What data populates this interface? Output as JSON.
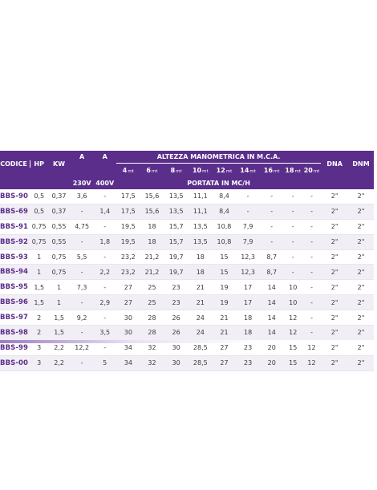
{
  "header": {
    "codice": "CODICE",
    "hp": "HP",
    "kw": "KW",
    "a1": "A",
    "a2": "A",
    "altezza": "ALTEZZA MANOMETRICA IN M.C.A.",
    "dna": "DNA",
    "dnm": "DNM",
    "v230": "230V",
    "v400": "400V",
    "portata": "PORTATA IN MC/H",
    "unit": "mt",
    "heights": [
      "4",
      "6",
      "8",
      "10",
      "12",
      "14",
      "16",
      "18",
      "20"
    ]
  },
  "rows": [
    [
      "BBS-90",
      "0,5",
      "0,37",
      "3,6",
      "-",
      "17,5",
      "15,6",
      "13,5",
      "11,1",
      "8,4",
      "-",
      "-",
      "-",
      "-",
      "2\"",
      "2\""
    ],
    [
      "BBS-69",
      "0,5",
      "0,37",
      "-",
      "1,4",
      "17,5",
      "15,6",
      "13,5",
      "11,1",
      "8,4",
      "-",
      "-",
      "-",
      "-",
      "2\"",
      "2\""
    ],
    [
      "BBS-91",
      "0,75",
      "0,55",
      "4,75",
      "-",
      "19,5",
      "18",
      "15,7",
      "13,5",
      "10,8",
      "7,9",
      "-",
      "-",
      "-",
      "2\"",
      "2\""
    ],
    [
      "BBS-92",
      "0,75",
      "0,55",
      "-",
      "1,8",
      "19,5",
      "18",
      "15,7",
      "13,5",
      "10,8",
      "7,9",
      "-",
      "-",
      "-",
      "2\"",
      "2\""
    ],
    [
      "BBS-93",
      "1",
      "0,75",
      "5,5",
      "-",
      "23,2",
      "21,2",
      "19,7",
      "18",
      "15",
      "12,3",
      "8,7",
      "-",
      "-",
      "2\"",
      "2\""
    ],
    [
      "BBS-94",
      "1",
      "0,75",
      "-",
      "2,2",
      "23,2",
      "21,2",
      "19,7",
      "18",
      "15",
      "12,3",
      "8,7",
      "-",
      "-",
      "2\"",
      "2\""
    ],
    [
      "BBS-95",
      "1,5",
      "1",
      "7,3",
      "-",
      "27",
      "25",
      "23",
      "21",
      "19",
      "17",
      "14",
      "10",
      "-",
      "2\"",
      "2\""
    ],
    [
      "BBS-96",
      "1,5",
      "1",
      "-",
      "2,9",
      "27",
      "25",
      "23",
      "21",
      "19",
      "17",
      "14",
      "10",
      "-",
      "2\"",
      "2\""
    ],
    [
      "BBS-97",
      "2",
      "1,5",
      "9,2",
      "-",
      "30",
      "28",
      "26",
      "24",
      "21",
      "18",
      "14",
      "12",
      "-",
      "2\"",
      "2\""
    ],
    [
      "BBS-98",
      "2",
      "1,5",
      "-",
      "3,5",
      "30",
      "28",
      "26",
      "24",
      "21",
      "18",
      "14",
      "12",
      "-",
      "2\"",
      "2\""
    ],
    [
      "BBS-99",
      "3",
      "2,2",
      "12,2",
      "-",
      "34",
      "32",
      "30",
      "28,5",
      "27",
      "23",
      "20",
      "15",
      "12",
      "2\"",
      "2\""
    ],
    [
      "BBS-00",
      "3",
      "2,2",
      "-",
      "5",
      "34",
      "32",
      "30",
      "28,5",
      "27",
      "23",
      "20",
      "15",
      "12",
      "2\"",
      "2\""
    ]
  ]
}
